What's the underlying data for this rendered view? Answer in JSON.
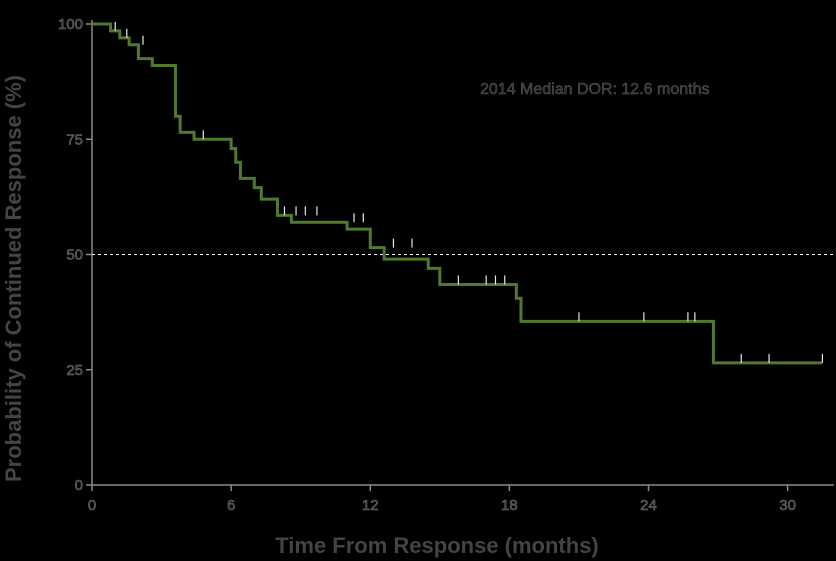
{
  "chart_data": {
    "type": "line",
    "subtype": "kaplan-meier",
    "title": "",
    "xlabel": "Time From Response (months)",
    "ylabel": "Probability of Continued Response (%)",
    "xlim": [
      0,
      32
    ],
    "ylim": [
      0,
      100
    ],
    "xticks": [
      0,
      6,
      12,
      18,
      24,
      30
    ],
    "yticks": [
      0,
      25,
      50,
      75,
      100
    ],
    "xtick_labels": [
      "0",
      "6",
      "12",
      "18",
      "24",
      "30"
    ],
    "ytick_labels": [
      "0",
      "25",
      "50",
      "75",
      "100"
    ],
    "grid": false,
    "legend": "none",
    "reference_line": {
      "y": 50,
      "style": "dashed",
      "color": "#ffffff"
    },
    "annotation": "2014 Median DOR: 12.6 months",
    "series": [
      {
        "color": "#4f7a2e",
        "steps": [
          [
            0,
            100
          ],
          [
            0.8,
            98.5
          ],
          [
            1.2,
            97
          ],
          [
            1.6,
            95.5
          ],
          [
            2.0,
            92.5
          ],
          [
            2.6,
            91
          ],
          [
            3.6,
            80
          ],
          [
            3.8,
            76.5
          ],
          [
            4.4,
            75
          ],
          [
            6.0,
            73
          ],
          [
            6.2,
            70
          ],
          [
            6.4,
            66.5
          ],
          [
            7.0,
            64.5
          ],
          [
            7.3,
            62
          ],
          [
            8.0,
            58.5
          ],
          [
            8.6,
            57
          ],
          [
            11.0,
            55.5
          ],
          [
            12.0,
            51.5
          ],
          [
            12.6,
            49
          ],
          [
            14.5,
            47
          ],
          [
            15.0,
            43.5
          ],
          [
            18.3,
            40.5
          ],
          [
            18.5,
            35.5
          ],
          [
            26.8,
            26.5
          ],
          [
            28.5,
            26.5
          ],
          [
            31.5,
            26.5
          ]
        ],
        "censored": [
          [
            1.0,
            98.5
          ],
          [
            1.5,
            97
          ],
          [
            2.2,
            95.5
          ],
          [
            4.8,
            75
          ],
          [
            8.3,
            58.5
          ],
          [
            8.8,
            58.5
          ],
          [
            9.2,
            58.5
          ],
          [
            9.7,
            58.5
          ],
          [
            11.3,
            57
          ],
          [
            11.7,
            57
          ],
          [
            13.0,
            51.5
          ],
          [
            13.8,
            51.5
          ],
          [
            15.8,
            43.5
          ],
          [
            17.0,
            43.5
          ],
          [
            17.4,
            43.5
          ],
          [
            17.8,
            43.5
          ],
          [
            21.0,
            35.5
          ],
          [
            23.8,
            35.5
          ],
          [
            25.7,
            35.5
          ],
          [
            26.0,
            35.5
          ],
          [
            28.0,
            26.5
          ],
          [
            29.2,
            26.5
          ],
          [
            31.5,
            26.5
          ]
        ]
      }
    ]
  }
}
